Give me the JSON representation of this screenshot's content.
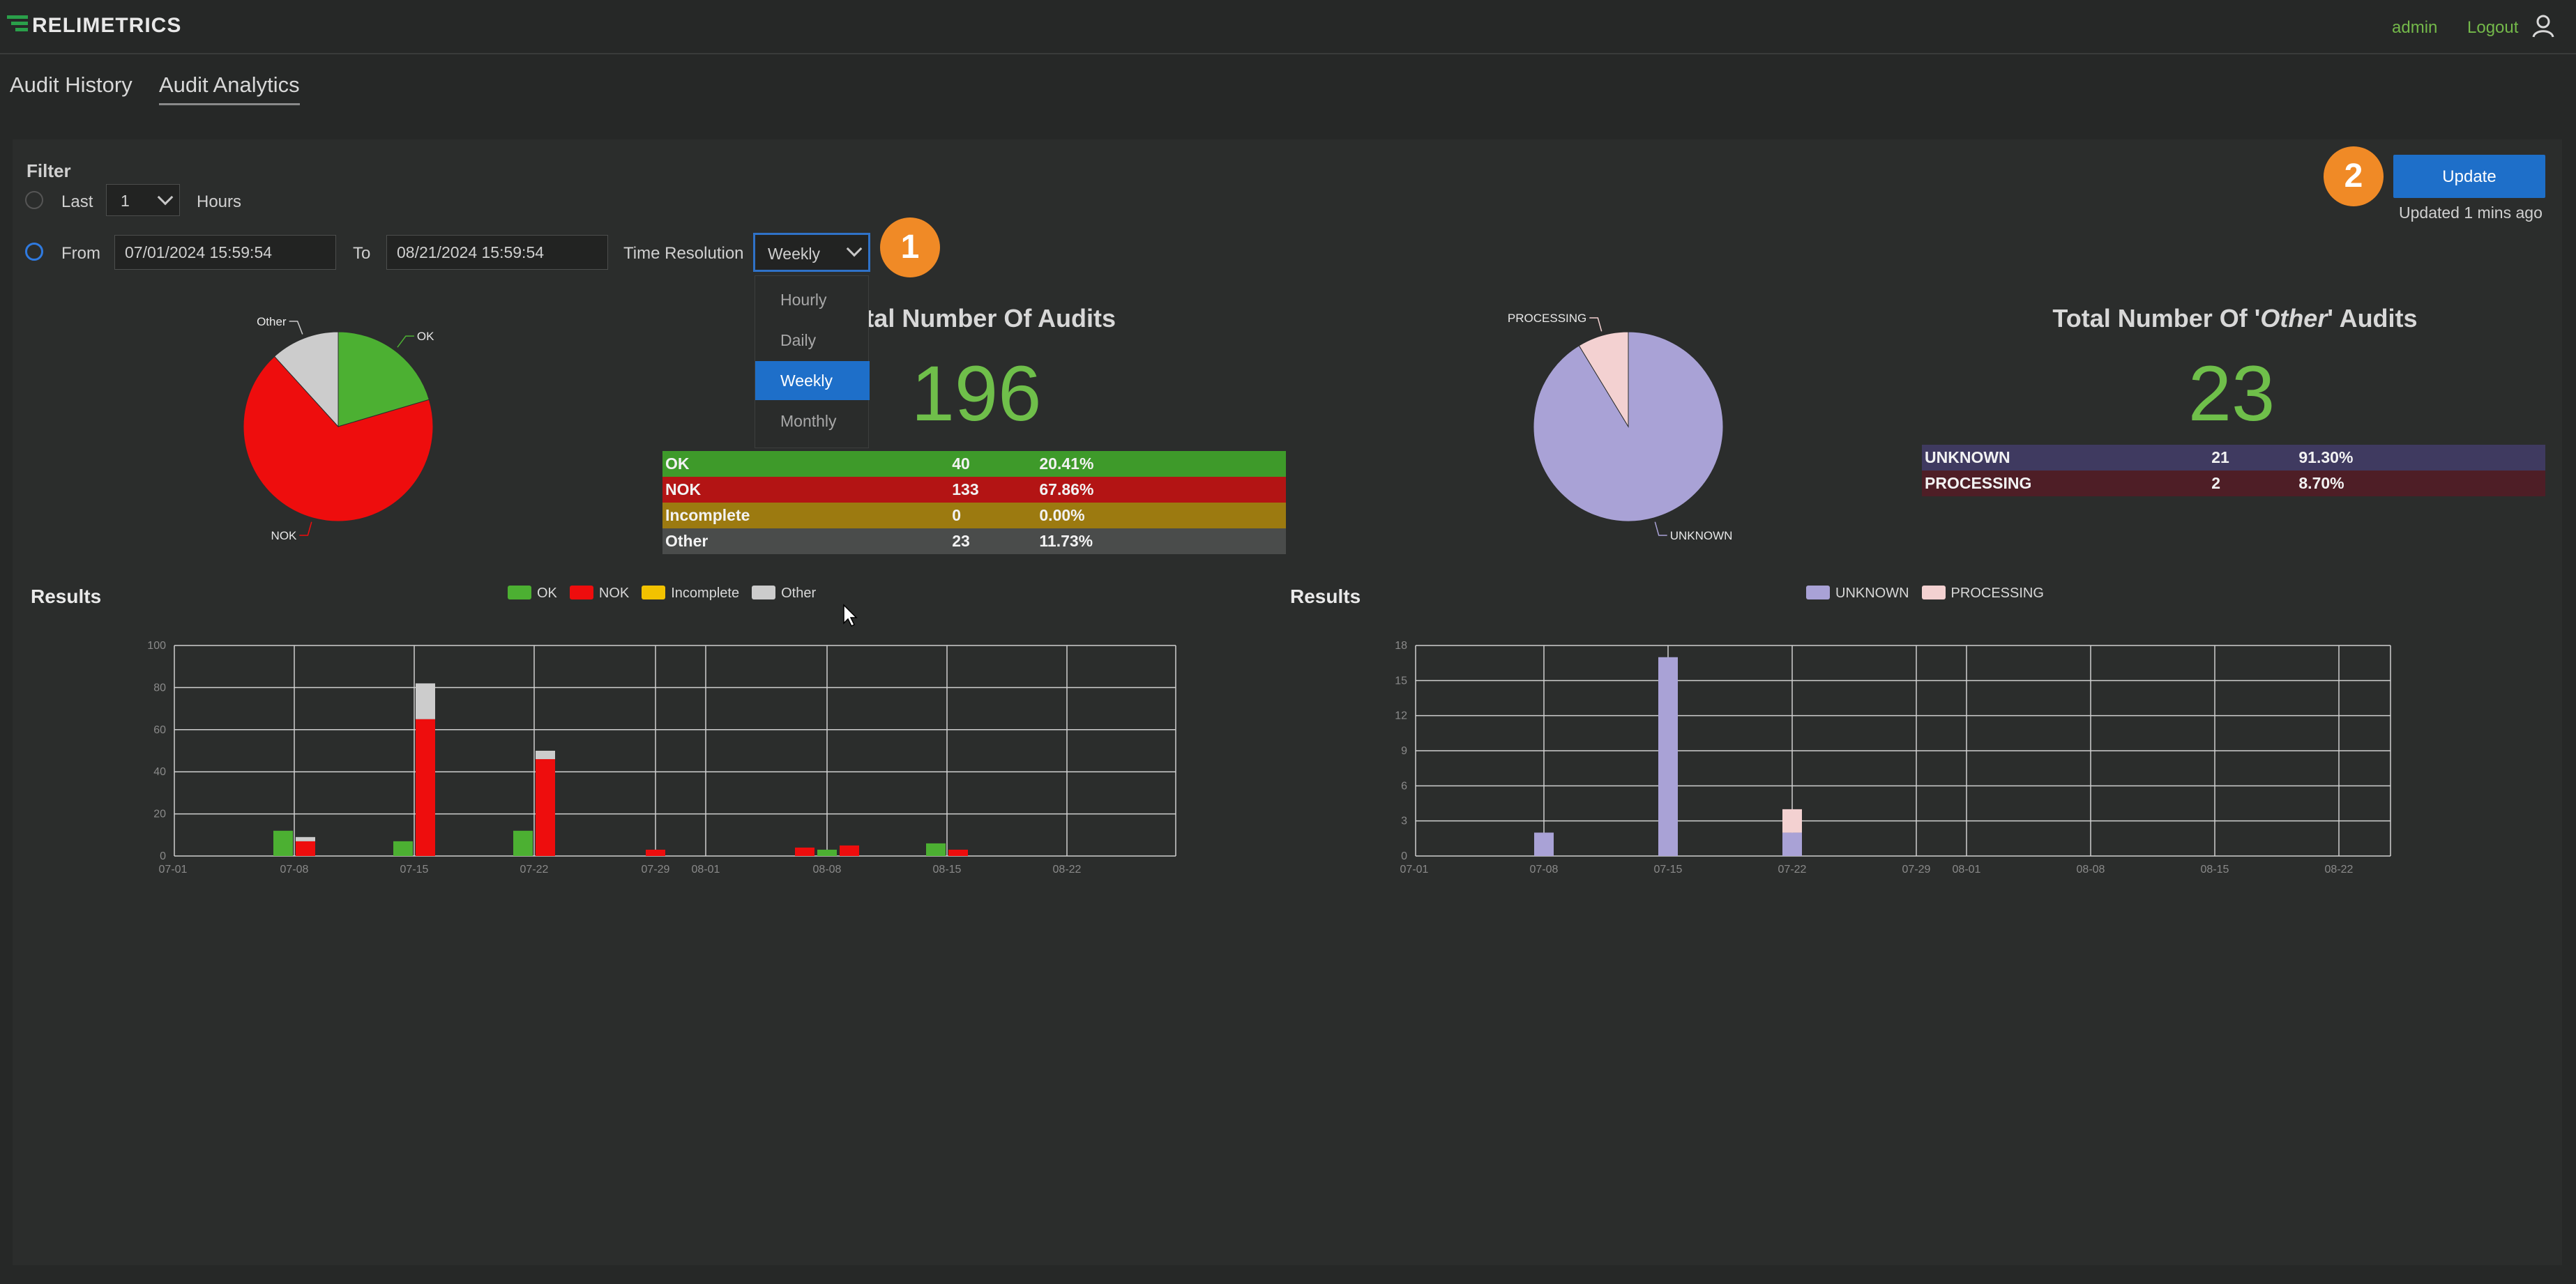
{
  "app": {
    "logo": "RELIMETRICS",
    "user": "admin",
    "logout": "Logout"
  },
  "tabs": [
    {
      "label": "Audit History",
      "active": false
    },
    {
      "label": "Audit Analytics",
      "active": true
    }
  ],
  "filter": {
    "title": "Filter",
    "last_label": "Last",
    "last_value": "1",
    "hours_label": "Hours",
    "from_label": "From",
    "from_value": "07/01/2024 15:59:54",
    "to_label": "To",
    "to_value": "08/21/2024 15:59:54",
    "resolution_label": "Time Resolution",
    "resolution_value": "Weekly",
    "resolution_options": [
      "Hourly",
      "Daily",
      "Weekly",
      "Monthly"
    ]
  },
  "badges": [
    "1",
    "2"
  ],
  "update": {
    "button": "Update",
    "status": "Updated 1 mins ago"
  },
  "audits": {
    "title": "Total Number Of Audits",
    "total": "196",
    "rows": [
      {
        "name": "OK",
        "count": "40",
        "pct": "20.41%",
        "color": "#3e9a2a"
      },
      {
        "name": "NOK",
        "count": "133",
        "pct": "67.86%",
        "color": "#b31414"
      },
      {
        "name": "Incomplete",
        "count": "0",
        "pct": "0.00%",
        "color": "#9c7a10"
      },
      {
        "name": "Other",
        "count": "23",
        "pct": "11.73%",
        "color": "#4a4c4b"
      }
    ]
  },
  "other_audits": {
    "title_pre": "Total Number Of '",
    "title_em": "Other",
    "title_post": "' Audits",
    "total": "23",
    "rows": [
      {
        "name": "UNKNOWN",
        "count": "21",
        "pct": "91.30%",
        "color": "#3f3a60"
      },
      {
        "name": "PROCESSING",
        "count": "2",
        "pct": "8.70%",
        "color": "#4e1e26"
      }
    ]
  },
  "results_label": "Results",
  "chart_data": [
    {
      "type": "pie",
      "labels": [
        "OK",
        "NOK",
        "Incomplete",
        "Other"
      ],
      "values": [
        40,
        133,
        0,
        23
      ],
      "colors": [
        "#4cb032",
        "#ee0d0d",
        "#f2c200",
        "#cccccc"
      ]
    },
    {
      "type": "pie",
      "labels": [
        "UNKNOWN",
        "PROCESSING"
      ],
      "values": [
        21,
        2
      ],
      "colors": [
        "#a9a2d6",
        "#f3d1d1"
      ]
    },
    {
      "type": "bar",
      "title": "Results",
      "stacked": true,
      "x_ticks": [
        "07-01",
        "07-08",
        "07-15",
        "07-22",
        "07-29",
        "08-01",
        "08-08",
        "08-15",
        "08-22"
      ],
      "y_ticks": [
        0,
        20,
        40,
        60,
        80,
        100
      ],
      "ylim": [
        0,
        100
      ],
      "legend": [
        "OK",
        "NOK",
        "Incomplete",
        "Other"
      ],
      "legend_colors": [
        "#4cb032",
        "#ee0d0d",
        "#f2c200",
        "#cccccc"
      ],
      "bars": [
        {
          "x": "07-08",
          "OK": 12,
          "NOK": 0,
          "Incomplete": 0,
          "Other": 0
        },
        {
          "x": "07-08",
          "OK": 0,
          "NOK": 7,
          "Incomplete": 0,
          "Other": 2
        },
        {
          "x": "07-15",
          "OK": 7,
          "NOK": 0,
          "Incomplete": 0,
          "Other": 0
        },
        {
          "x": "07-15",
          "OK": 0,
          "NOK": 65,
          "Incomplete": 0,
          "Other": 17
        },
        {
          "x": "07-22",
          "OK": 12,
          "NOK": 0,
          "Incomplete": 0,
          "Other": 0
        },
        {
          "x": "07-22",
          "OK": 0,
          "NOK": 46,
          "Incomplete": 0,
          "Other": 4
        },
        {
          "x": "07-29",
          "OK": 0,
          "NOK": 3,
          "Incomplete": 0,
          "Other": 0
        },
        {
          "x": "08-08",
          "OK": 0,
          "NOK": 4,
          "Incomplete": 0,
          "Other": 0
        },
        {
          "x": "08-08",
          "OK": 3,
          "NOK": 0,
          "Incomplete": 0,
          "Other": 0
        },
        {
          "x": "08-08",
          "OK": 0,
          "NOK": 5,
          "Incomplete": 0,
          "Other": 0
        },
        {
          "x": "08-15",
          "OK": 6,
          "NOK": 0,
          "Incomplete": 0,
          "Other": 0
        },
        {
          "x": "08-15",
          "OK": 0,
          "NOK": 3,
          "Incomplete": 0,
          "Other": 0
        }
      ]
    },
    {
      "type": "bar",
      "title": "Results",
      "stacked": true,
      "x_ticks": [
        "07-01",
        "07-08",
        "07-15",
        "07-22",
        "07-29",
        "08-01",
        "08-08",
        "08-15",
        "08-22"
      ],
      "y_ticks": [
        0,
        3,
        6,
        9,
        12,
        15,
        18
      ],
      "ylim": [
        0,
        18
      ],
      "legend": [
        "UNKNOWN",
        "PROCESSING"
      ],
      "legend_colors": [
        "#a9a2d6",
        "#f3d1d1"
      ],
      "bars": [
        {
          "x": "07-08",
          "UNKNOWN": 2,
          "PROCESSING": 0
        },
        {
          "x": "07-15",
          "UNKNOWN": 17,
          "PROCESSING": 0
        },
        {
          "x": "07-22",
          "UNKNOWN": 2,
          "PROCESSING": 2
        }
      ]
    }
  ]
}
